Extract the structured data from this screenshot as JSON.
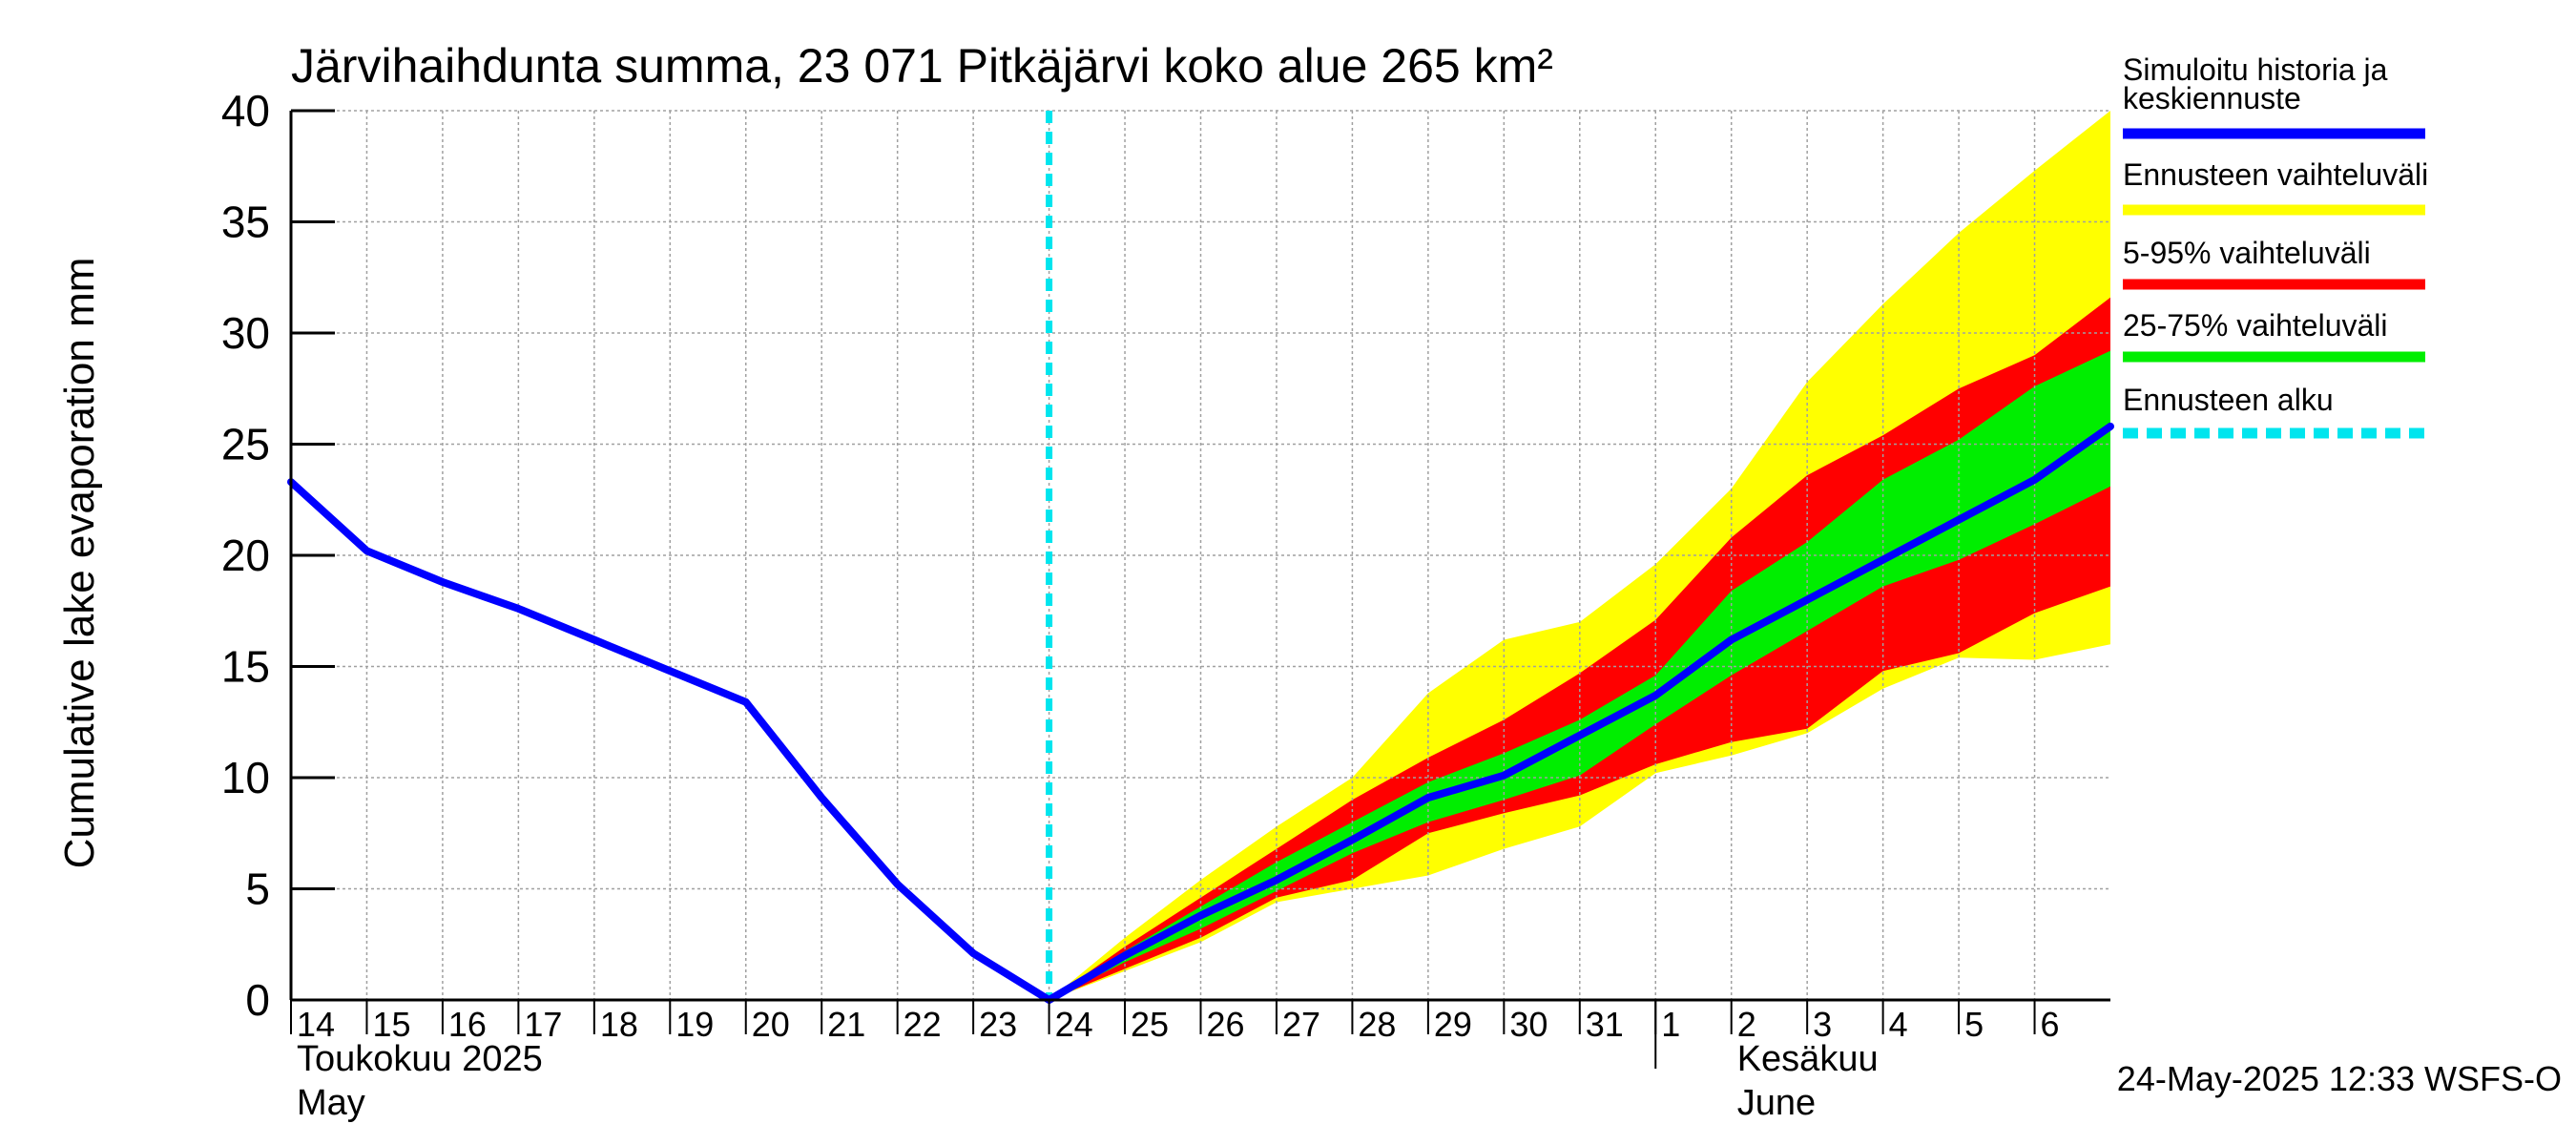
{
  "chart_data": {
    "type": "area",
    "title": "Järvihaihdunta summa, 23 071 Pitkäjärvi koko alue 265 km²",
    "ylabel": "Cumulative lake evaporation   mm",
    "ylim": [
      0,
      40
    ],
    "yticks": [
      0,
      5,
      10,
      15,
      20,
      25,
      30,
      35,
      40
    ],
    "x_day_range": [
      0,
      24
    ],
    "x_ticks": [
      {
        "day": 0,
        "label": "14"
      },
      {
        "day": 1,
        "label": "15"
      },
      {
        "day": 2,
        "label": "16"
      },
      {
        "day": 3,
        "label": "17"
      },
      {
        "day": 4,
        "label": "18"
      },
      {
        "day": 5,
        "label": "19"
      },
      {
        "day": 6,
        "label": "20"
      },
      {
        "day": 7,
        "label": "21"
      },
      {
        "day": 8,
        "label": "22"
      },
      {
        "day": 9,
        "label": "23"
      },
      {
        "day": 10,
        "label": "24"
      },
      {
        "day": 11,
        "label": "25"
      },
      {
        "day": 12,
        "label": "26"
      },
      {
        "day": 13,
        "label": "27"
      },
      {
        "day": 14,
        "label": "28"
      },
      {
        "day": 15,
        "label": "29"
      },
      {
        "day": 16,
        "label": "30"
      },
      {
        "day": 17,
        "label": "31"
      },
      {
        "day": 18,
        "label": "1"
      },
      {
        "day": 19,
        "label": "2"
      },
      {
        "day": 20,
        "label": "3"
      },
      {
        "day": 21,
        "label": "4"
      },
      {
        "day": 22,
        "label": "5"
      },
      {
        "day": 23,
        "label": "6"
      }
    ],
    "month_labels": [
      {
        "day": 0,
        "line1": "Toukokuu  2025",
        "line2": "May"
      },
      {
        "day": 19,
        "line1": "Kesäkuu",
        "line2": "June"
      }
    ],
    "month_separator_day": 18,
    "forecast_start_day": 10,
    "history": {
      "x": [
        0,
        1,
        2,
        3,
        4,
        5,
        6,
        7,
        8,
        9,
        10
      ],
      "y": [
        23.3,
        20.2,
        18.8,
        17.6,
        16.2,
        14.8,
        13.4,
        9.1,
        5.2,
        2.1,
        0.0
      ]
    },
    "forecast_x": [
      10,
      11,
      12,
      13,
      14,
      15,
      16,
      17,
      18,
      19,
      20,
      21,
      22,
      23,
      24
    ],
    "median": [
      0.0,
      2.0,
      3.8,
      5.4,
      7.2,
      9.1,
      10.1,
      11.9,
      13.7,
      16.2,
      18.0,
      19.8,
      21.6,
      23.4,
      25.8
    ],
    "band_minmax": {
      "low": [
        0.0,
        1.3,
        2.6,
        4.4,
        5.0,
        5.6,
        6.8,
        7.8,
        10.2,
        11.0,
        12.0,
        14.0,
        15.4,
        15.3,
        16.0
      ],
      "high": [
        0.0,
        2.8,
        5.4,
        7.8,
        10.0,
        13.8,
        16.2,
        17.0,
        19.6,
        23.0,
        27.8,
        31.3,
        34.5,
        37.3,
        40.0
      ]
    },
    "band_5_95": {
      "low": [
        0.0,
        1.4,
        2.8,
        4.6,
        5.4,
        7.5,
        8.4,
        9.2,
        10.6,
        11.6,
        12.2,
        14.8,
        15.6,
        17.4,
        18.6
      ],
      "high": [
        0.0,
        2.4,
        4.6,
        6.8,
        9.0,
        10.9,
        12.6,
        14.7,
        17.1,
        20.8,
        23.6,
        25.4,
        27.5,
        29.0,
        31.6
      ]
    },
    "band_25_75": {
      "low": [
        0.0,
        1.7,
        3.2,
        4.9,
        6.6,
        8.0,
        9.0,
        10.1,
        12.4,
        14.6,
        16.6,
        18.6,
        19.8,
        21.4,
        23.1
      ],
      "high": [
        0.0,
        2.2,
        4.2,
        6.2,
        8.0,
        9.8,
        11.1,
        12.6,
        14.6,
        18.4,
        20.6,
        23.4,
        25.2,
        27.6,
        29.2
      ]
    },
    "colors": {
      "history": "#0000ff",
      "minmax": "#ffff00",
      "p5_95": "#ff0000",
      "p25_75": "#00ee00",
      "forecast_start": "#00e5ee",
      "grid": "#a0a0a0"
    },
    "legend": [
      {
        "key": "history",
        "label": "Simuloitu historia ja keskiennuste",
        "style": "solid"
      },
      {
        "key": "minmax",
        "label": "Ennusteen vaihteluväli",
        "style": "solid"
      },
      {
        "key": "p5_95",
        "label": "5-95% vaihteluväli",
        "style": "solid"
      },
      {
        "key": "p25_75",
        "label": "25-75% vaihteluväli",
        "style": "solid"
      },
      {
        "key": "forecast_start",
        "label": "Ennusteen alku",
        "style": "dashed"
      }
    ],
    "legend_position": "right",
    "footer": "24-May-2025 12:33 WSFS-O"
  }
}
